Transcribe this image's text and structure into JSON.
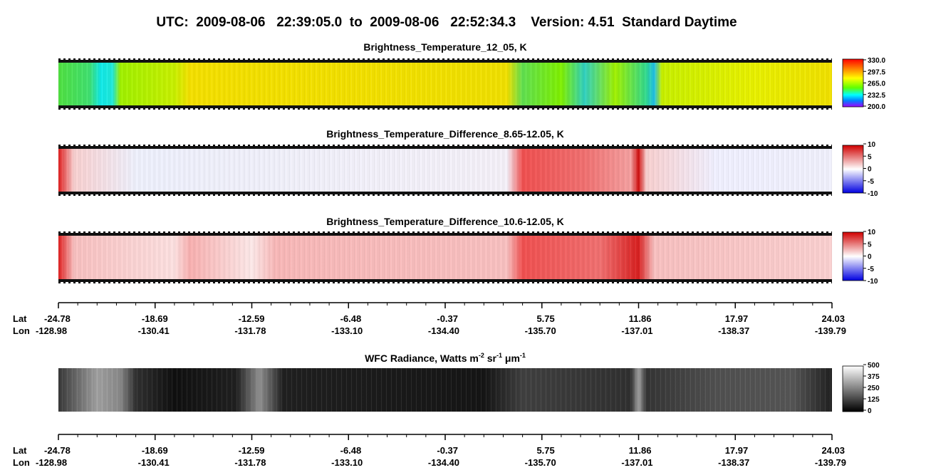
{
  "title": "UTC:  2009-08-06   22:39:05.0  to  2009-08-06   22:52:34.3    Version: 4.51  Standard Daytime",
  "panels": [
    {
      "title": "Brightness_Temperature_12_05, K",
      "colorbar_ticks": [
        "330.0",
        "297.5",
        "265.0",
        "232.5",
        "200.0"
      ]
    },
    {
      "title": "Brightness_Temperature_Difference_8.65-12.05, K",
      "colorbar_ticks": [
        "10",
        "5",
        "0",
        "-5",
        "-10"
      ]
    },
    {
      "title": "Brightness_Temperature_Difference_10.6-12.05, K",
      "colorbar_ticks": [
        "10",
        "5",
        "0",
        "-5",
        "-10"
      ]
    },
    {
      "title_parts": [
        "WFC Radiance, Watts m",
        "-2",
        " sr",
        "-1",
        " μm",
        "-1"
      ],
      "colorbar_ticks": [
        "500",
        "375",
        "250",
        "125",
        "0"
      ]
    }
  ],
  "axes": [
    {
      "lat_label": "Lat",
      "lon_label": "Lon",
      "lat": [
        "-24.78",
        "-18.69",
        "-12.59",
        "-6.48",
        "-0.37",
        "5.75",
        "11.86",
        "17.97",
        "24.03"
      ],
      "lon": [
        "-128.98",
        "-130.41",
        "-131.78",
        "-133.10",
        "-134.40",
        "-135.70",
        "-137.01",
        "-138.37",
        "-139.79"
      ]
    },
    {
      "lat_label": "Lat",
      "lon_label": "Lon",
      "lat": [
        "-24.78",
        "-18.69",
        "-12.59",
        "-6.48",
        "-0.37",
        "5.75",
        "11.86",
        "17.97",
        "24.03"
      ],
      "lon": [
        "-128.98",
        "-130.41",
        "-131.78",
        "-133.10",
        "-134.40",
        "-135.70",
        "-137.01",
        "-138.37",
        "-139.79"
      ]
    }
  ]
}
